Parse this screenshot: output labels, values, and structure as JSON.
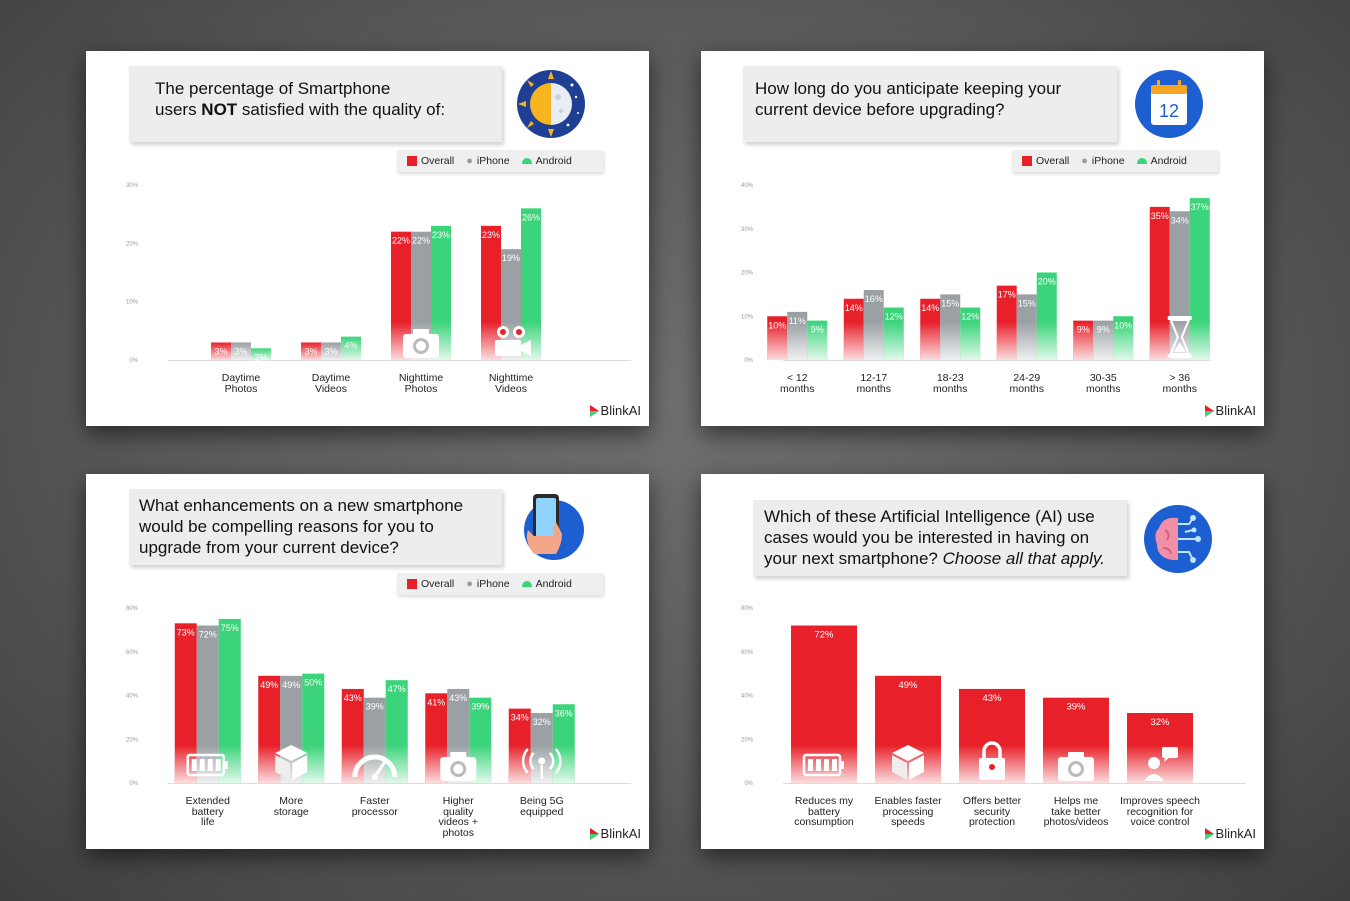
{
  "brand": "BlinkAI",
  "colors": {
    "overall": "#e8202a",
    "iphone": "#9aa0a4",
    "android": "#3bd47a"
  },
  "legend": {
    "overall": "Overall",
    "iphone": "iPhone",
    "android": "Android"
  },
  "charts": [
    {
      "icon": "day-night-icon",
      "question": [
        "The percentage of Smartphone",
        "users NOT satisfied with the quality of:"
      ],
      "chart_data": {
        "type": "bar",
        "categories": [
          "Daytime\nPhotos",
          "Daytime\nVideos",
          "Nighttime\nPhotos",
          "Nighttime\nVideos"
        ],
        "series": [
          {
            "name": "Overall",
            "values": [
              3,
              3,
              22,
              23
            ]
          },
          {
            "name": "iPhone",
            "values": [
              3,
              3,
              22,
              19
            ]
          },
          {
            "name": "Android",
            "values": [
              2,
              4,
              23,
              26
            ]
          }
        ],
        "yticks": [
          "30%",
          "20%",
          "10%",
          "0%"
        ],
        "ylim": [
          0,
          30
        ],
        "bar_icons": [
          "",
          "",
          "camera-icon",
          "video-camera-icon"
        ],
        "grid": false,
        "legend_position": "top-right"
      }
    },
    {
      "icon": "calendar-icon",
      "icon_text": "12",
      "question": [
        "How long do you anticipate keeping your",
        "current device before upgrading?"
      ],
      "chart_data": {
        "type": "bar",
        "categories": [
          "< 12\nmonths",
          "12-17\nmonths",
          "18-23\nmonths",
          "24-29\nmonths",
          "30-35\nmonths",
          "> 36\nmonths"
        ],
        "series": [
          {
            "name": "Overall",
            "values": [
              10,
              14,
              14,
              17,
              9,
              35
            ]
          },
          {
            "name": "iPhone",
            "values": [
              11,
              16,
              15,
              15,
              9,
              34
            ]
          },
          {
            "name": "Android",
            "values": [
              9,
              12,
              12,
              20,
              10,
              37
            ]
          }
        ],
        "yticks": [
          "40%",
          "30%",
          "20%",
          "10%",
          "0%"
        ],
        "ylim": [
          0,
          40
        ],
        "bar_icons": [
          "",
          "",
          "",
          "",
          "",
          "hourglass-icon"
        ],
        "grid": false,
        "legend_position": "top-right"
      }
    },
    {
      "icon": "hand-phone-icon",
      "question": [
        "What enhancements on a new smartphone",
        "would be compelling reasons for you to",
        "upgrade from your current device?"
      ],
      "chart_data": {
        "type": "bar",
        "categories": [
          "Extended\nbattery\nlife",
          "More\nstorage",
          "Faster\nprocessor",
          "Higher\nquality\nvideos +\nphotos",
          "Being 5G\nequipped"
        ],
        "series": [
          {
            "name": "Overall",
            "values": [
              73,
              49,
              43,
              41,
              34
            ]
          },
          {
            "name": "iPhone",
            "values": [
              72,
              49,
              39,
              43,
              32
            ]
          },
          {
            "name": "Android",
            "values": [
              75,
              50,
              47,
              39,
              36
            ]
          }
        ],
        "yticks": [
          "80%",
          "60%",
          "40%",
          "20%",
          "0%"
        ],
        "ylim": [
          0,
          80
        ],
        "bar_icons": [
          "battery-icon",
          "box-icon",
          "speedometer-icon",
          "camera-icon",
          "signal-icon"
        ],
        "grid": false,
        "legend_position": "top-right"
      }
    },
    {
      "icon": "ai-brain-icon",
      "question": [
        "Which of these Artificial Intelligence (AI) use",
        "cases would you be interested in having on",
        "your next smartphone? Choose all that apply."
      ],
      "chart_data": {
        "type": "bar",
        "categories": [
          "Reduces my\nbattery\nconsumption",
          "Enables faster\nprocessing\nspeeds",
          "Offers better\nsecurity\nprotection",
          "Helps me\ntake better\nphotos/videos",
          "Improves speech\nrecognition for\nvoice control"
        ],
        "series": [
          {
            "name": "Overall",
            "values": [
              72,
              49,
              43,
              39,
              32
            ]
          }
        ],
        "yticks": [
          "80%",
          "60%",
          "40%",
          "20%",
          "0%"
        ],
        "ylim": [
          0,
          80
        ],
        "bar_icons": [
          "battery-icon",
          "box-icon",
          "lock-icon",
          "camera-icon",
          "speech-icon"
        ],
        "grid": false,
        "legend_position": "none"
      }
    }
  ]
}
